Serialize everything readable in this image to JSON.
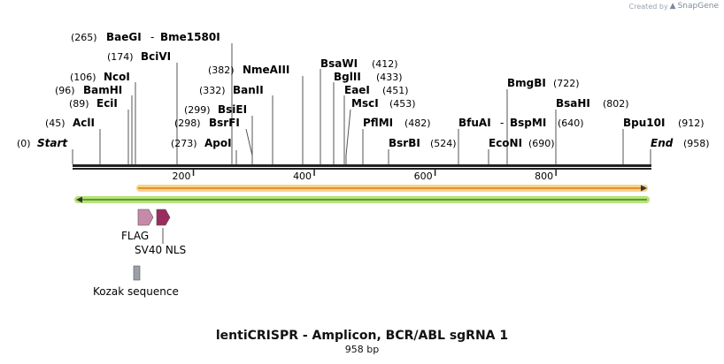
{
  "credit": {
    "prefix": "Created by",
    "brand": "SnapGene"
  },
  "map": {
    "length_bp": 958,
    "axis": {
      "ticks": [
        200,
        400,
        600,
        800
      ],
      "tick_labels": [
        "200",
        "400",
        "600",
        "800"
      ]
    },
    "labels": [
      {
        "name": "Start",
        "pos": "(0)",
        "style": "italic"
      },
      {
        "name": "AclI",
        "pos": "(45)"
      },
      {
        "name": "EciI",
        "pos": "(89)"
      },
      {
        "name": "BamHI",
        "pos": "(96)"
      },
      {
        "name": "NcoI",
        "pos": "(106)"
      },
      {
        "name": "BciVI",
        "pos": "(174)"
      },
      {
        "name": "BaeGI",
        "name2": "Bme1580I",
        "pos": "(265)"
      },
      {
        "name": "ApoI",
        "pos": "(273)"
      },
      {
        "name": "BsrFI",
        "pos": "(298)"
      },
      {
        "name": "BsiEI",
        "pos": "(299)"
      },
      {
        "name": "BanII",
        "pos": "(332)"
      },
      {
        "name": "NmeAIII",
        "pos": "(382)"
      },
      {
        "name": "BsaWI",
        "pos": "(412)"
      },
      {
        "name": "BglII",
        "pos": "(433)"
      },
      {
        "name": "EaeI",
        "pos": "(451)"
      },
      {
        "name": "MscI",
        "pos": "(453)"
      },
      {
        "name": "PflMI",
        "pos": "(482)"
      },
      {
        "name": "BsrBI",
        "pos": "(524)"
      },
      {
        "name": "BfuAI",
        "name2": "BspMI",
        "pos": "(640)"
      },
      {
        "name": "EcoNI",
        "pos": "(690)"
      },
      {
        "name": "BmgBI",
        "pos": "(722)"
      },
      {
        "name": "BsaHI",
        "pos": "(802)"
      },
      {
        "name": "Bpu10I",
        "pos": "(912)"
      },
      {
        "name": "End",
        "pos": "(958)",
        "style": "italic"
      }
    ],
    "features": [
      {
        "name": "FLAG",
        "color": "#c68aa8"
      },
      {
        "name": "SV40 NLS",
        "color": "#9b2c5e"
      },
      {
        "name": "Kozak sequence",
        "color": "#9aa0a6"
      }
    ],
    "colors": {
      "orange_bar": "#e07a10",
      "orange_glow": "#f6d38c",
      "green_bar": "#2f8a1a",
      "green_glow": "#b9e07a"
    }
  },
  "title": "lentiCRISPR - Amplicon, BCR/ABL sgRNA 1",
  "subtitle": "958 bp"
}
